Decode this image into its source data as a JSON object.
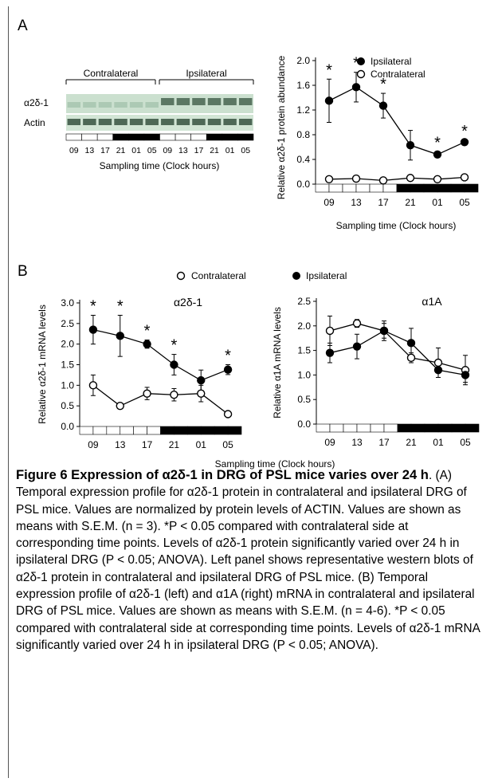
{
  "panel_a": {
    "letter": "A",
    "blot": {
      "group_labels": [
        "Contralateral",
        "Ipsilateral"
      ],
      "row_labels": [
        "α2δ-1",
        "Actin"
      ],
      "lane_labels": [
        "09",
        "13",
        "17",
        "21",
        "01",
        "05",
        "09",
        "13",
        "17",
        "21",
        "01",
        "05"
      ],
      "xlabel": "Sampling time (Clock hours)"
    }
  },
  "panel_b": {
    "letter": "B"
  },
  "chart_data": [
    {
      "type": "line",
      "title": "",
      "categories": [
        "09",
        "13",
        "17",
        "21",
        "01",
        "05"
      ],
      "xlabel": "Sampling time (Clock hours)",
      "ylabel": "Relative α2δ-1 protein abundance",
      "ylim": [
        0,
        2.0
      ],
      "yticks": [
        "0.0",
        "0.4",
        "0.8",
        "1.2",
        "1.6",
        "2.0"
      ],
      "legend_position": "top-right",
      "series": [
        {
          "name": "Ipsilateral",
          "marker": "filled",
          "values": [
            1.35,
            1.57,
            1.27,
            0.63,
            0.48,
            0.68
          ],
          "sem": [
            0.35,
            0.24,
            0.2,
            0.24,
            0.04,
            0.03
          ]
        },
        {
          "name": "Contralateral",
          "marker": "open",
          "values": [
            0.08,
            0.09,
            0.06,
            0.1,
            0.08,
            0.11
          ],
          "sem": [
            0.03,
            0.03,
            0.02,
            0.03,
            0.02,
            0.03
          ]
        }
      ],
      "annotations": [
        "*",
        "*",
        "*",
        "*",
        "*"
      ]
    },
    {
      "type": "line",
      "title": "α2δ-1",
      "categories": [
        "09",
        "13",
        "17",
        "21",
        "01",
        "05"
      ],
      "xlabel": "",
      "ylabel": "Relative α2δ-1 mRNA levels",
      "ylim": [
        0,
        3.0
      ],
      "yticks": [
        "0.0",
        "0.5",
        "1.0",
        "1.5",
        "2.0",
        "2.5",
        "3.0"
      ],
      "legend_position": "top",
      "series": [
        {
          "name": "Contralateral",
          "marker": "open",
          "values": [
            1.0,
            0.5,
            0.8,
            0.77,
            0.8,
            0.3
          ],
          "sem": [
            0.25,
            0.0,
            0.15,
            0.15,
            0.2,
            0.0
          ]
        },
        {
          "name": "Ipsilateral",
          "marker": "filled",
          "values": [
            2.35,
            2.2,
            2.0,
            1.5,
            1.12,
            1.38
          ],
          "sem": [
            0.35,
            0.5,
            0.1,
            0.25,
            0.25,
            0.12
          ]
        }
      ],
      "annotations": [
        "*",
        "*",
        "*",
        "*",
        "*"
      ]
    },
    {
      "type": "line",
      "title": "α1A",
      "categories": [
        "09",
        "13",
        "17",
        "21",
        "01",
        "05"
      ],
      "xlabel": "",
      "ylabel": "Relative α1A mRNA levels",
      "ylim": [
        0,
        2.5
      ],
      "yticks": [
        "0.0",
        "0.5",
        "1.0",
        "1.5",
        "2.0",
        "2.5"
      ],
      "series": [
        {
          "name": "Contralateral",
          "marker": "open",
          "values": [
            1.9,
            2.05,
            1.9,
            1.35,
            1.25,
            1.1
          ],
          "sem": [
            0.3,
            0.08,
            0.2,
            0.1,
            0.3,
            0.3
          ]
        },
        {
          "name": "Ipsilateral",
          "marker": "filled",
          "values": [
            1.45,
            1.58,
            1.9,
            1.65,
            1.1,
            1.0
          ],
          "sem": [
            0.2,
            0.25,
            0.15,
            0.3,
            0.15,
            0.15
          ]
        }
      ]
    }
  ],
  "shared_xlabel_b": "Sampling time (Clock hours)",
  "caption": {
    "title": "Figure 6 Expression of α2δ-1 in DRG of PSL mice varies over 24 h",
    "body": ". (A) Temporal expression profile for α2δ-1 protein in contralateral and ipsilateral DRG of PSL mice. Values are normalized by protein levels of ACTIN. Values are shown as means with S.E.M. (n = 3). *P < 0.05 compared with contralateral side at corresponding time points. Levels of α2δ-1 protein significantly varied over 24 h in ipsilateral DRG (P < 0.05; ANOVA). Left panel shows representative western blots of α2δ-1 protein in contralateral and ipsilateral DRG of PSL mice. (B) Temporal expression profile of α2δ-1 (left) and α1A (right) mRNA in contralateral and ipsilateral DRG of PSL mice. Values are shown as means with S.E.M. (n = 4-6). *P < 0.05 compared with contralateral side at corresponding time points. Levels of α2δ-1 mRNA significantly varied over 24 h in ipsilateral DRG (P < 0.05; ANOVA)."
  }
}
